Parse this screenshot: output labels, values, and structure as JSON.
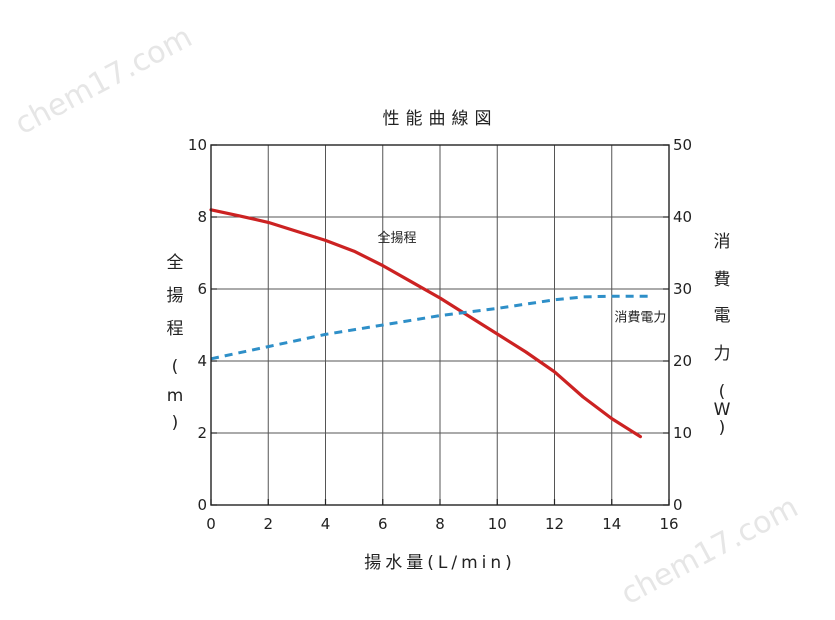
{
  "watermarks": [
    "chem17.com",
    "chem17.com"
  ],
  "chart_data": {
    "type": "line",
    "title": "性能曲線図",
    "xlabel": "揚水量(L/min)",
    "ylabel_left": [
      "全",
      "揚",
      "程",
      "(",
      "m",
      ")"
    ],
    "ylabel_right": [
      "消",
      "費",
      "電",
      "力",
      "(",
      "W",
      ")"
    ],
    "xlim": [
      0,
      16
    ],
    "ylim_left": [
      0,
      10
    ],
    "ylim_right": [
      0,
      50
    ],
    "xticks": [
      0,
      2,
      4,
      6,
      8,
      10,
      12,
      14,
      16
    ],
    "yticks_left": [
      0,
      2,
      4,
      6,
      8,
      10
    ],
    "yticks_right": [
      0,
      10,
      20,
      30,
      40,
      50
    ],
    "grid": true,
    "series": [
      {
        "name": "全揚程",
        "axis": "left",
        "color": "#cc2222",
        "style": "solid",
        "x": [
          0,
          1,
          2,
          3,
          4,
          5,
          6,
          7,
          8,
          9,
          10,
          11,
          12,
          13,
          14,
          15
        ],
        "y": [
          8.2,
          8.03,
          7.85,
          7.6,
          7.35,
          7.05,
          6.65,
          6.2,
          5.75,
          5.25,
          4.75,
          4.25,
          3.7,
          3.0,
          2.4,
          1.9
        ]
      },
      {
        "name": "消費電力",
        "axis": "right",
        "color": "#2e8fc8",
        "style": "dashed",
        "x": [
          0,
          2,
          4,
          6,
          8,
          10,
          12,
          13,
          14,
          15.3
        ],
        "y": [
          20.3,
          22.0,
          23.7,
          25.0,
          26.3,
          27.3,
          28.5,
          28.9,
          29.0,
          29.0
        ]
      }
    ],
    "annotations": [
      {
        "text": "全揚程",
        "x": 6.5,
        "y_left": 7.3
      },
      {
        "text": "消費電力",
        "x": 15,
        "y_left": 5.1
      }
    ]
  }
}
